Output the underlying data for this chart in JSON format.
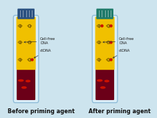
{
  "bg_left": "#cde4ee",
  "bg_right": "#c8e8e0",
  "tube_body_color": "#f0c000",
  "tube_blood_color": "#6b0018",
  "tube_glass_fill": "#daeef8",
  "tube_glass_stroke": "#90bcd8",
  "cap_left_color": "#2a5080",
  "cap_right_color": "#1e7a6a",
  "dna_helix_color": "#8a6800",
  "ctdna_dot_color": "#cc1100",
  "blood_oval_color": "#cc1100",
  "label_left": "Before priming agent",
  "label_right": "After priming agent",
  "ctdna_label": "ctDNA",
  "cellfree_label": "Cell-free\nDNA",
  "label_fontsize": 5.8,
  "annotation_fontsize": 3.8,
  "figsize": [
    2.28,
    1.71
  ],
  "dpi": 100
}
